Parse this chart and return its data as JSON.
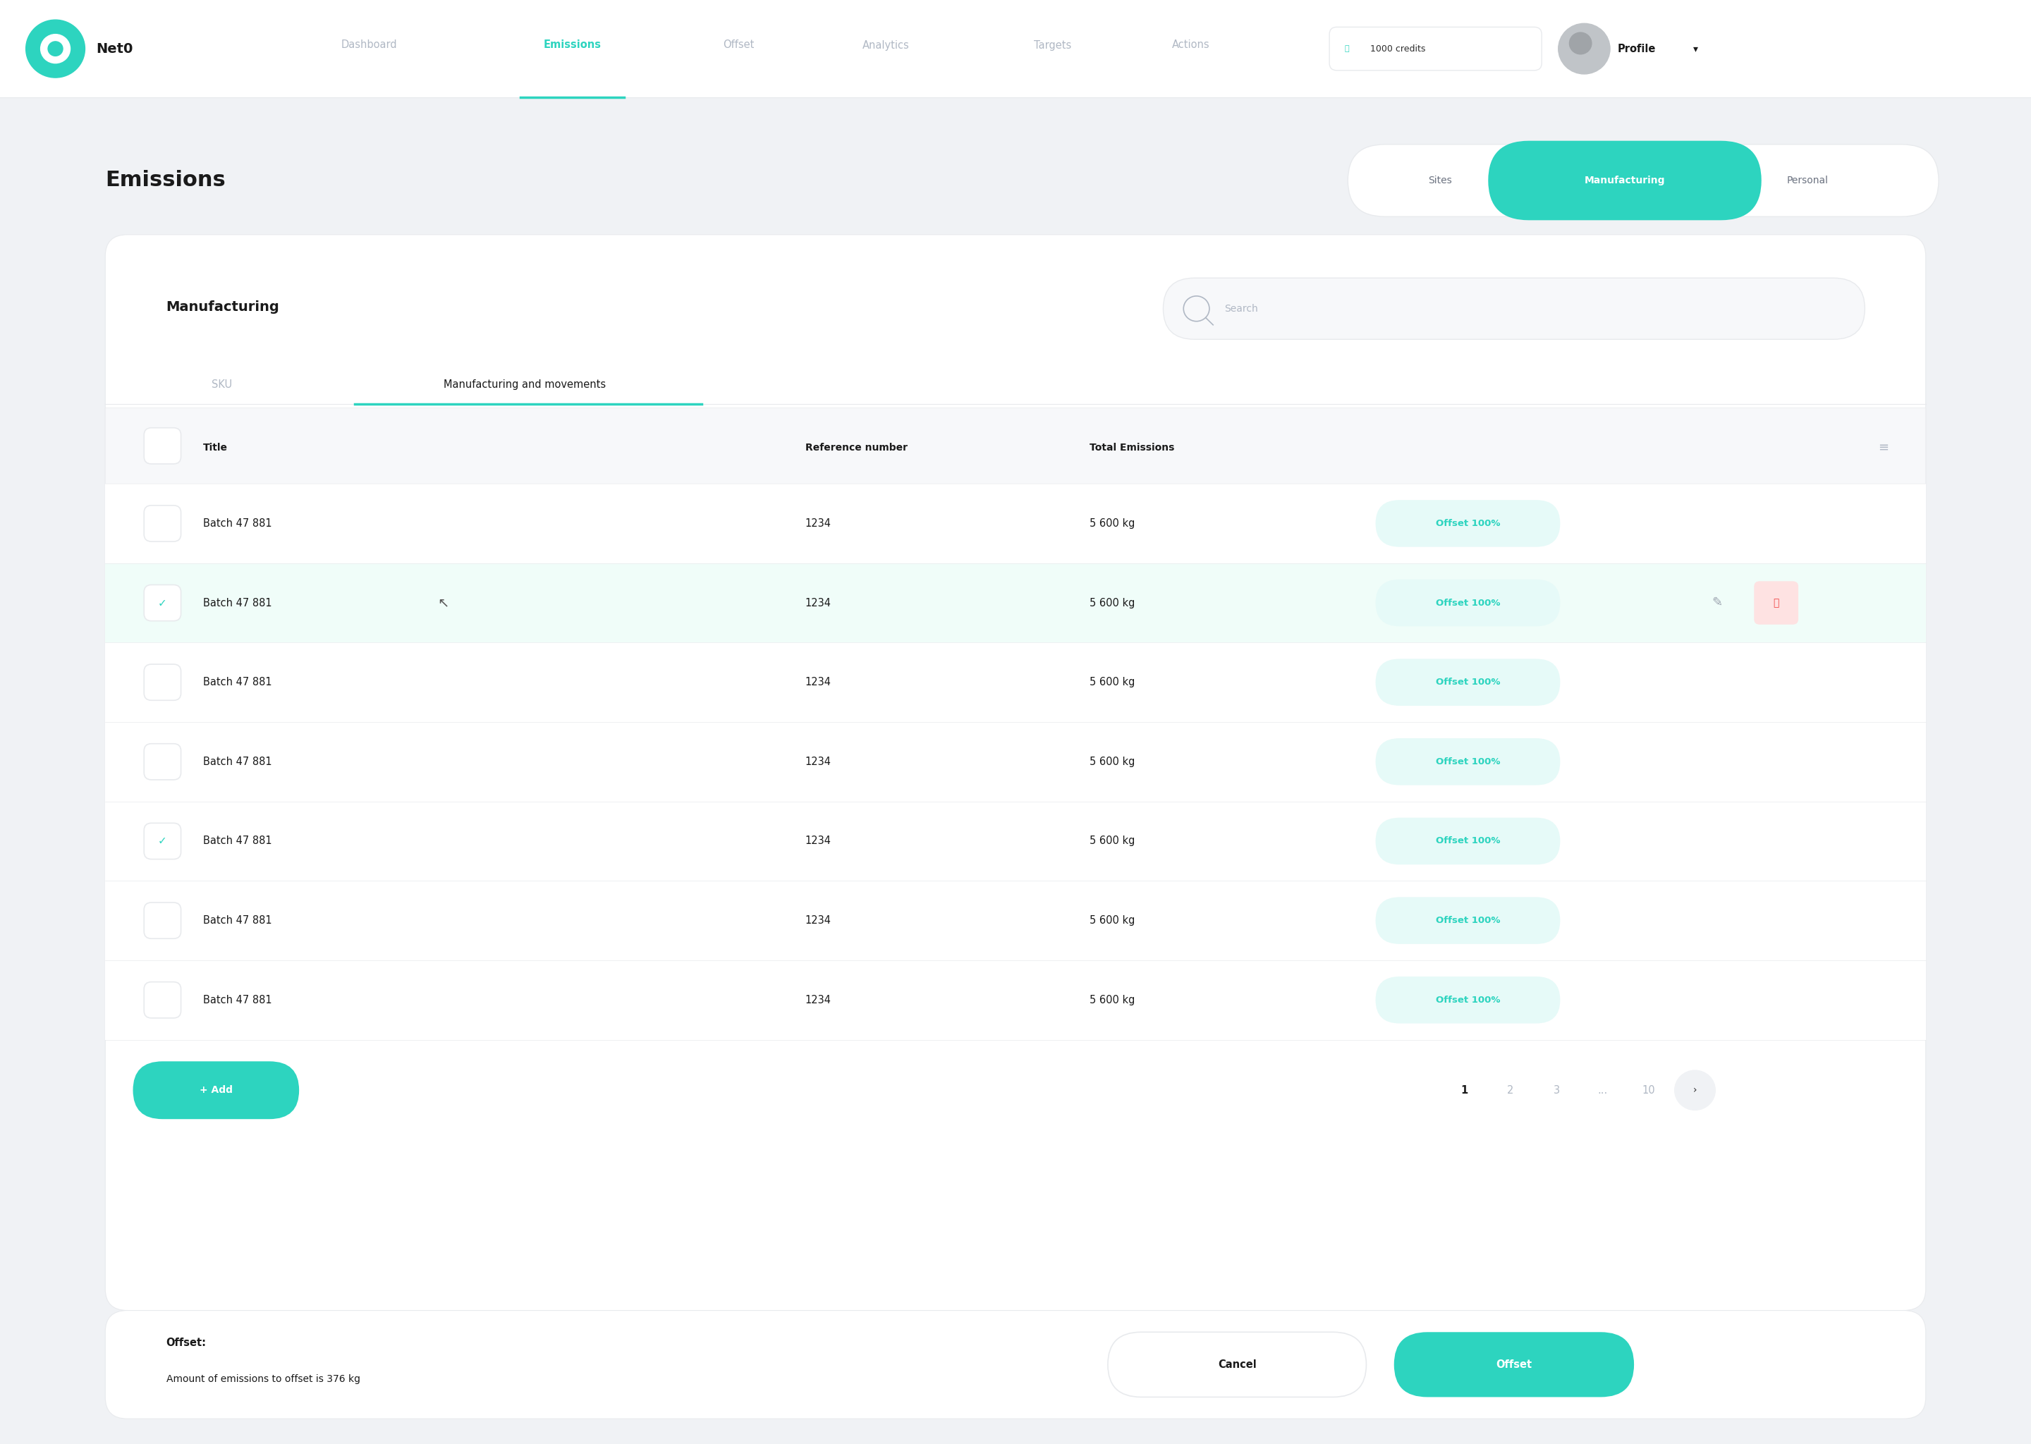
{
  "bg_color": "#f0f2f5",
  "white": "#ffffff",
  "teal": "#2dd4bf",
  "text_dark": "#2d2d2d",
  "text_black": "#1a1a1a",
  "text_gray": "#b0b8c4",
  "text_medium": "#6b7280",
  "border_color": "#e8eaed",
  "light_gray_bg": "#f7f8fa",
  "nav_items": [
    "Dashboard",
    "Emissions",
    "Offset",
    "Analytics",
    "Targets",
    "Actions"
  ],
  "nav_active": "Emissions",
  "credits": "1000 credits",
  "profile": "Profile",
  "page_title": "Emissions",
  "tab_sku": "SKU",
  "tab_manufacturing": "Manufacturing and movements",
  "table_headers": [
    "Title",
    "Reference number",
    "Total Emissions"
  ],
  "rows": [
    {
      "title": "Batch 47 881",
      "ref": "1234",
      "emissions": "5 600 kg",
      "offset": "Offset 100%",
      "checked": false,
      "highlighted": false
    },
    {
      "title": "Batch 47 881",
      "ref": "1234",
      "emissions": "5 600 kg",
      "offset": "Offset 100%",
      "checked": true,
      "highlighted": true
    },
    {
      "title": "Batch 47 881",
      "ref": "1234",
      "emissions": "5 600 kg",
      "offset": "Offset 100%",
      "checked": false,
      "highlighted": false
    },
    {
      "title": "Batch 47 881",
      "ref": "1234",
      "emissions": "5 600 kg",
      "offset": "Offset 100%",
      "checked": false,
      "highlighted": false
    },
    {
      "title": "Batch 47 881",
      "ref": "1234",
      "emissions": "5 600 kg",
      "offset": "Offset 100%",
      "checked": true,
      "highlighted": false
    },
    {
      "title": "Batch 47 881",
      "ref": "1234",
      "emissions": "5 600 kg",
      "offset": "Offset 100%",
      "checked": false,
      "highlighted": false
    },
    {
      "title": "Batch 47 881",
      "ref": "1234",
      "emissions": "5 600 kg",
      "offset": "Offset 100%",
      "checked": false,
      "highlighted": false
    }
  ],
  "add_button": "+ Add",
  "pagination": [
    "1",
    "2",
    "3",
    "...",
    "10"
  ],
  "offset_label": "Offset:",
  "offset_text": "Amount of emissions to offset is 376 kg",
  "cancel_button": "Cancel",
  "offset_button": "Offset",
  "section_title": "Manufacturing",
  "search_placeholder": "Search"
}
